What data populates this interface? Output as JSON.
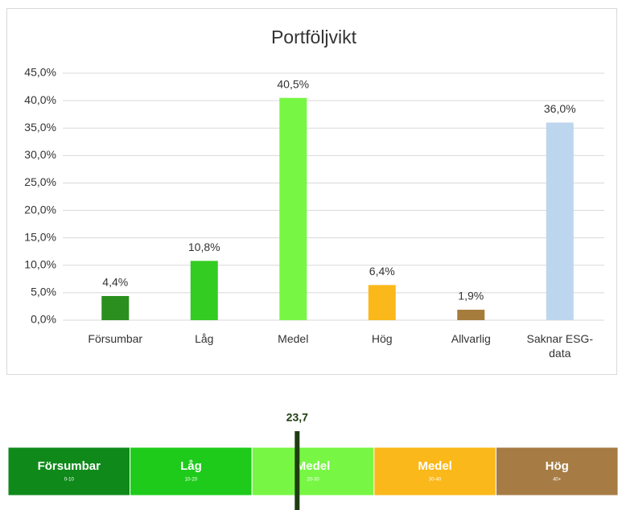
{
  "chart_data": [
    {
      "type": "bar",
      "title": "Portföljvikt",
      "categories": [
        "Försumbar",
        "Låg",
        "Medel",
        "Hög",
        "Allvarlig",
        "Saknar ESG-data"
      ],
      "values": [
        4.4,
        10.8,
        40.5,
        6.4,
        1.9,
        36.0
      ],
      "value_labels": [
        "4,4%",
        "10,8%",
        "40,5%",
        "6,4%",
        "1,9%",
        "36,0%"
      ],
      "colors": [
        "#2a8f1e",
        "#33cc22",
        "#77f744",
        "#fbb81a",
        "#a67c3d",
        "#bcd6ee"
      ],
      "ylim": [
        0,
        45
      ],
      "yticks": [
        {
          "value": 0,
          "label": "0,0%"
        },
        {
          "value": 5,
          "label": "5,0%"
        },
        {
          "value": 10,
          "label": "10,0%"
        },
        {
          "value": 15,
          "label": "15,0%"
        },
        {
          "value": 20,
          "label": "20,0%"
        },
        {
          "value": 25,
          "label": "25,0%"
        },
        {
          "value": 30,
          "label": "30,0%"
        },
        {
          "value": 35,
          "label": "35,0%"
        },
        {
          "value": 40,
          "label": "40,0%"
        },
        {
          "value": 45,
          "label": "45,0%"
        }
      ],
      "grid": true
    },
    {
      "type": "scale",
      "segments": [
        {
          "label": "Försumbar",
          "range": "0-10",
          "color": "#0f8a1a"
        },
        {
          "label": "Låg",
          "range": "10-20",
          "color": "#1ecb1a"
        },
        {
          "label": "Medel",
          "range": "20-30",
          "color": "#77f744"
        },
        {
          "label": "Medel",
          "range": "30-40",
          "color": "#fbb81a"
        },
        {
          "label": "Hög",
          "range": "40+",
          "color": "#a67c44"
        }
      ],
      "xlim": [
        0,
        50
      ],
      "value": 23.7,
      "value_label": "23,7",
      "marker_color": "#1f3d10"
    }
  ]
}
